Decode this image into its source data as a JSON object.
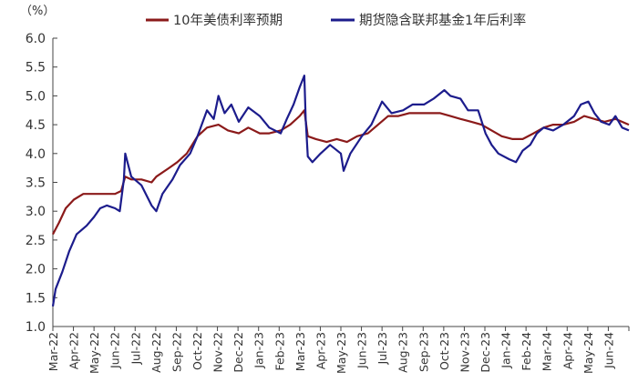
{
  "chart_data": {
    "type": "line",
    "unit_label": "（%）",
    "ylim": [
      1.0,
      6.0
    ],
    "y_ticks": [
      1.0,
      1.5,
      2.0,
      2.5,
      3.0,
      3.5,
      4.0,
      4.5,
      5.0,
      5.5,
      6.0
    ],
    "y_tick_labels": [
      "1.0",
      "1.5",
      "2.0",
      "2.5",
      "3.0",
      "3.5",
      "4.0",
      "4.5",
      "5.0",
      "5.5",
      "6.0"
    ],
    "x_tick_labels": [
      "Mar-22",
      "Apr-22",
      "May-22",
      "Jun-22",
      "Jul-22",
      "Aug-22",
      "Sep-22",
      "Oct-22",
      "Nov-22",
      "Dec-22",
      "Jan-23",
      "Feb-23",
      "Mar-23",
      "Apr-23",
      "May-23",
      "Jun-23",
      "Jul-23",
      "Aug-23",
      "Sep-23",
      "Oct-23",
      "Nov-23",
      "Dec-23",
      "Jan-24",
      "Feb-24",
      "Mar-24",
      "Apr-24",
      "May-24",
      "Jun-24"
    ],
    "xlim": [
      "2022-03-01",
      "2024-06-30"
    ],
    "grid": false,
    "legend_position": "top",
    "series": [
      {
        "name": "10年美债利率预期",
        "color": "#8B1A1A",
        "points": [
          [
            "2022-03-01",
            2.6
          ],
          [
            "2022-03-10",
            2.8
          ],
          [
            "2022-03-20",
            3.05
          ],
          [
            "2022-04-01",
            3.2
          ],
          [
            "2022-04-15",
            3.3
          ],
          [
            "2022-05-01",
            3.3
          ],
          [
            "2022-05-15",
            3.3
          ],
          [
            "2022-06-01",
            3.3
          ],
          [
            "2022-06-10",
            3.35
          ],
          [
            "2022-06-16",
            3.6
          ],
          [
            "2022-06-25",
            3.55
          ],
          [
            "2022-07-10",
            3.55
          ],
          [
            "2022-07-25",
            3.5
          ],
          [
            "2022-08-01",
            3.6
          ],
          [
            "2022-08-20",
            3.75
          ],
          [
            "2022-09-01",
            3.85
          ],
          [
            "2022-09-15",
            4.0
          ],
          [
            "2022-10-01",
            4.3
          ],
          [
            "2022-10-15",
            4.45
          ],
          [
            "2022-11-01",
            4.5
          ],
          [
            "2022-11-15",
            4.4
          ],
          [
            "2022-12-01",
            4.35
          ],
          [
            "2022-12-15",
            4.45
          ],
          [
            "2023-01-01",
            4.35
          ],
          [
            "2023-01-15",
            4.35
          ],
          [
            "2023-02-01",
            4.4
          ],
          [
            "2023-02-15",
            4.5
          ],
          [
            "2023-03-01",
            4.65
          ],
          [
            "2023-03-08",
            4.75
          ],
          [
            "2023-03-13",
            4.3
          ],
          [
            "2023-03-25",
            4.25
          ],
          [
            "2023-04-10",
            4.2
          ],
          [
            "2023-04-25",
            4.25
          ],
          [
            "2023-05-10",
            4.2
          ],
          [
            "2023-05-25",
            4.3
          ],
          [
            "2023-06-10",
            4.35
          ],
          [
            "2023-06-25",
            4.5
          ],
          [
            "2023-07-10",
            4.65
          ],
          [
            "2023-07-25",
            4.65
          ],
          [
            "2023-08-10",
            4.7
          ],
          [
            "2023-08-25",
            4.7
          ],
          [
            "2023-09-10",
            4.7
          ],
          [
            "2023-09-25",
            4.7
          ],
          [
            "2023-10-10",
            4.65
          ],
          [
            "2023-10-25",
            4.6
          ],
          [
            "2023-11-10",
            4.55
          ],
          [
            "2023-11-25",
            4.5
          ],
          [
            "2023-12-10",
            4.4
          ],
          [
            "2023-12-25",
            4.3
          ],
          [
            "2024-01-10",
            4.25
          ],
          [
            "2024-01-25",
            4.25
          ],
          [
            "2024-02-10",
            4.35
          ],
          [
            "2024-02-25",
            4.45
          ],
          [
            "2024-03-10",
            4.5
          ],
          [
            "2024-03-25",
            4.5
          ],
          [
            "2024-04-10",
            4.55
          ],
          [
            "2024-04-25",
            4.65
          ],
          [
            "2024-05-10",
            4.6
          ],
          [
            "2024-05-25",
            4.55
          ],
          [
            "2024-06-10",
            4.6
          ],
          [
            "2024-06-30",
            4.5
          ]
        ]
      },
      {
        "name": "期货隐含联邦基金1年后利率",
        "color": "#1C1C8C",
        "points": [
          [
            "2022-03-01",
            1.35
          ],
          [
            "2022-03-05",
            1.65
          ],
          [
            "2022-03-15",
            1.95
          ],
          [
            "2022-03-25",
            2.3
          ],
          [
            "2022-04-05",
            2.6
          ],
          [
            "2022-04-20",
            2.75
          ],
          [
            "2022-05-01",
            2.9
          ],
          [
            "2022-05-10",
            3.05
          ],
          [
            "2022-05-20",
            3.1
          ],
          [
            "2022-06-01",
            3.05
          ],
          [
            "2022-06-08",
            3.0
          ],
          [
            "2022-06-14",
            3.55
          ],
          [
            "2022-06-16",
            4.0
          ],
          [
            "2022-06-25",
            3.6
          ],
          [
            "2022-07-10",
            3.45
          ],
          [
            "2022-07-25",
            3.1
          ],
          [
            "2022-08-01",
            3.0
          ],
          [
            "2022-08-10",
            3.3
          ],
          [
            "2022-08-25",
            3.55
          ],
          [
            "2022-09-05",
            3.8
          ],
          [
            "2022-09-20",
            4.0
          ],
          [
            "2022-10-01",
            4.3
          ],
          [
            "2022-10-15",
            4.75
          ],
          [
            "2022-10-25",
            4.6
          ],
          [
            "2022-11-01",
            5.0
          ],
          [
            "2022-11-10",
            4.7
          ],
          [
            "2022-11-20",
            4.85
          ],
          [
            "2022-12-01",
            4.55
          ],
          [
            "2022-12-15",
            4.8
          ],
          [
            "2023-01-01",
            4.65
          ],
          [
            "2023-01-15",
            4.45
          ],
          [
            "2023-02-01",
            4.35
          ],
          [
            "2023-02-10",
            4.6
          ],
          [
            "2023-02-20",
            4.85
          ],
          [
            "2023-03-01",
            5.15
          ],
          [
            "2023-03-08",
            5.35
          ],
          [
            "2023-03-10",
            4.6
          ],
          [
            "2023-03-13",
            3.95
          ],
          [
            "2023-03-20",
            3.85
          ],
          [
            "2023-04-01",
            4.0
          ],
          [
            "2023-04-15",
            4.15
          ],
          [
            "2023-05-01",
            4.0
          ],
          [
            "2023-05-05",
            3.7
          ],
          [
            "2023-05-15",
            4.0
          ],
          [
            "2023-06-01",
            4.3
          ],
          [
            "2023-06-15",
            4.5
          ],
          [
            "2023-07-01",
            4.9
          ],
          [
            "2023-07-15",
            4.7
          ],
          [
            "2023-08-01",
            4.75
          ],
          [
            "2023-08-15",
            4.85
          ],
          [
            "2023-09-01",
            4.85
          ],
          [
            "2023-09-15",
            4.95
          ],
          [
            "2023-10-01",
            5.1
          ],
          [
            "2023-10-10",
            5.0
          ],
          [
            "2023-10-25",
            4.95
          ],
          [
            "2023-11-05",
            4.75
          ],
          [
            "2023-11-20",
            4.75
          ],
          [
            "2023-12-01",
            4.35
          ],
          [
            "2023-12-10",
            4.15
          ],
          [
            "2023-12-20",
            4.0
          ],
          [
            "2024-01-05",
            3.9
          ],
          [
            "2024-01-15",
            3.85
          ],
          [
            "2024-01-25",
            4.05
          ],
          [
            "2024-02-05",
            4.15
          ],
          [
            "2024-02-15",
            4.35
          ],
          [
            "2024-02-25",
            4.45
          ],
          [
            "2024-03-10",
            4.4
          ],
          [
            "2024-03-25",
            4.5
          ],
          [
            "2024-04-10",
            4.65
          ],
          [
            "2024-04-20",
            4.85
          ],
          [
            "2024-05-01",
            4.9
          ],
          [
            "2024-05-10",
            4.7
          ],
          [
            "2024-05-20",
            4.55
          ],
          [
            "2024-06-01",
            4.5
          ],
          [
            "2024-06-10",
            4.65
          ],
          [
            "2024-06-20",
            4.45
          ],
          [
            "2024-06-30",
            4.4
          ]
        ]
      }
    ]
  }
}
